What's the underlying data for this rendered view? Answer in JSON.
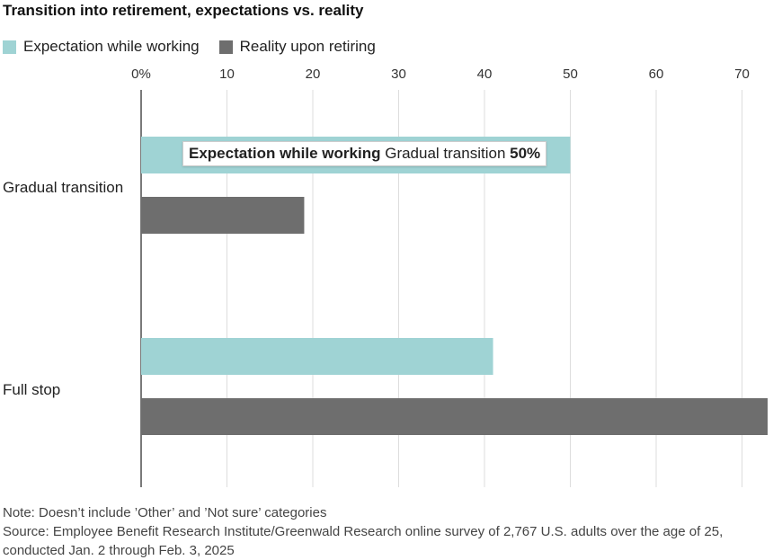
{
  "colors": {
    "expectation": "#9fd3d4",
    "reality": "#6e6e6e",
    "grid": "#dddddd",
    "axis": "#222222"
  },
  "chart_data": {
    "type": "bar",
    "orientation": "horizontal",
    "title": "Transition into retirement, expectations vs. reality",
    "categories": [
      "Gradual transition",
      "Full stop"
    ],
    "series": [
      {
        "name": "Expectation while working",
        "values": [
          50,
          41
        ]
      },
      {
        "name": "Reality upon retiring",
        "values": [
          19,
          73
        ]
      }
    ],
    "xlim": [
      0,
      73
    ],
    "xticks": [
      0,
      10,
      20,
      30,
      40,
      50,
      60,
      70
    ],
    "xtick_labels": [
      "0%",
      "10",
      "20",
      "30",
      "40",
      "50",
      "60",
      "70"
    ],
    "grid": true,
    "legend_position": "top-left"
  },
  "tooltip": {
    "series": "Expectation while working",
    "category": "Gradual transition",
    "value": "50%"
  },
  "footer": {
    "note": "Note: Doesn’t include ’Other’ and ’Not sure’ categories",
    "source": "Source: Employee Benefit Research Institute/Greenwald Research online survey of 2,767 U.S. adults over the age of 25, conducted Jan. 2 through Feb. 3, 2025"
  }
}
